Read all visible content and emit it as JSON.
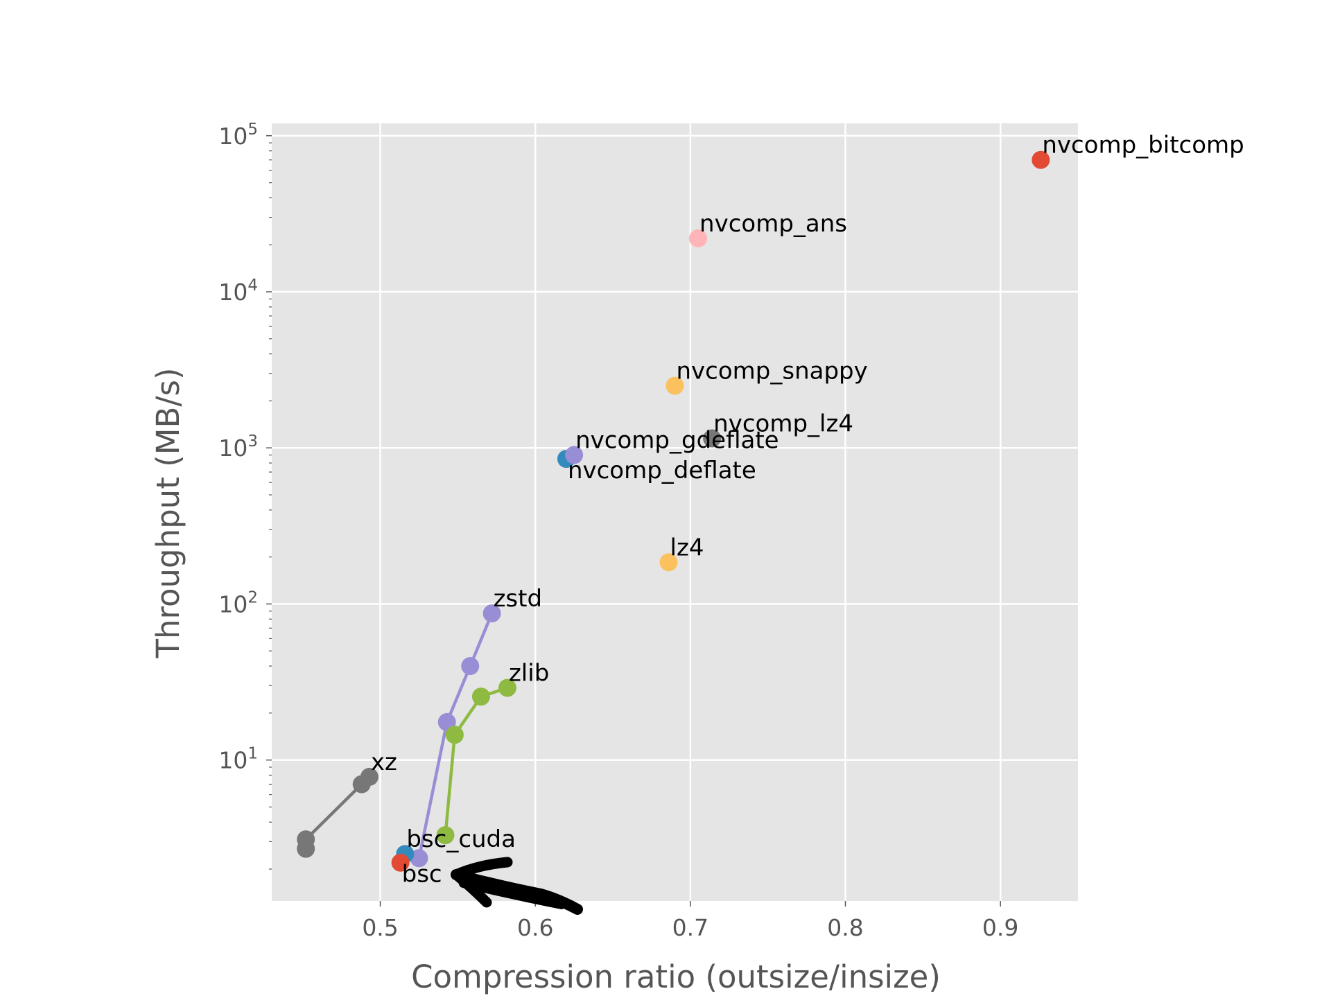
{
  "chart_data": {
    "type": "scatter",
    "title": "",
    "xlabel": "Compression ratio (outsize/insize)",
    "ylabel": "Throughput (MB/s)",
    "xlim": [
      0.43,
      0.95
    ],
    "ylim": [
      1.25,
      120000
    ],
    "yscale": "log",
    "grid": true,
    "xticks": [
      0.5,
      0.6,
      0.7,
      0.8,
      0.9
    ],
    "xtick_labels": [
      "0.5",
      "0.6",
      "0.7",
      "0.8",
      "0.9"
    ],
    "yticks": [
      10,
      100,
      1000,
      10000,
      100000
    ],
    "ytick_labels": [
      {
        "base": "10",
        "exp": "1"
      },
      {
        "base": "10",
        "exp": "2"
      },
      {
        "base": "10",
        "exp": "3"
      },
      {
        "base": "10",
        "exp": "4"
      },
      {
        "base": "10",
        "exp": "5"
      }
    ],
    "series": [
      {
        "label": "nvcomp_bitcomp",
        "color": "#E24A33",
        "points": [
          [
            0.926,
            70000
          ]
        ],
        "label_at": "last"
      },
      {
        "label": "nvcomp_ans",
        "color": "#FFB5B8",
        "points": [
          [
            0.705,
            22000
          ]
        ],
        "label_at": "last"
      },
      {
        "label": "nvcomp_snappy",
        "color": "#FBC15E",
        "points": [
          [
            0.69,
            2500
          ]
        ],
        "label_at": "last"
      },
      {
        "label": "nvcomp_lz4",
        "color": "#777777",
        "points": [
          [
            0.714,
            1150
          ]
        ],
        "label_at": "last"
      },
      {
        "label": "nvcomp_deflate",
        "color": "#348ABD",
        "points": [
          [
            0.62,
            850
          ]
        ],
        "label_at": "last",
        "label_pos": "below"
      },
      {
        "label": "nvcomp_gdeflate",
        "color": "#988ED5",
        "points": [
          [
            0.625,
            900
          ]
        ],
        "label_at": "last"
      },
      {
        "label": "lz4",
        "color": "#FBC15E",
        "points": [
          [
            0.686,
            185
          ]
        ],
        "label_at": "last"
      },
      {
        "label": "zstd",
        "color": "#988ED5",
        "points": [
          [
            0.525,
            2.35
          ],
          [
            0.543,
            17.5
          ],
          [
            0.558,
            40
          ],
          [
            0.572,
            87
          ]
        ],
        "label_at": "last"
      },
      {
        "label": "zlib",
        "color": "#8EBA42",
        "points": [
          [
            0.542,
            3.3
          ],
          [
            0.548,
            14.5
          ],
          [
            0.565,
            25.5
          ],
          [
            0.582,
            29
          ]
        ],
        "label_at": "last"
      },
      {
        "label": "xz",
        "color": "#777777",
        "points": [
          [
            0.452,
            2.7
          ],
          [
            0.452,
            3.1
          ],
          [
            0.488,
            7.0
          ],
          [
            0.493,
            7.8
          ]
        ],
        "label_at": "last"
      },
      {
        "label": "bsc_cuda",
        "color": "#348ABD",
        "points": [
          [
            0.516,
            2.5
          ]
        ],
        "label_at": "first"
      },
      {
        "label": "bsc",
        "color": "#E24A33",
        "points": [
          [
            0.513,
            2.2
          ]
        ],
        "label_at": "first",
        "label_pos": "below"
      }
    ]
  }
}
